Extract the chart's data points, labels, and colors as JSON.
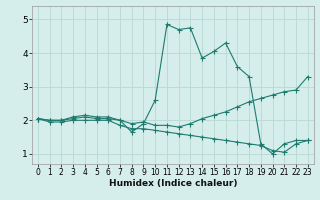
{
  "xlabel": "Humidex (Indice chaleur)",
  "bg_color": "#d5eeeb",
  "grid_color": "#b8d8d4",
  "line_color": "#1e7a6e",
  "xlim": [
    -0.5,
    23.5
  ],
  "ylim": [
    0.7,
    5.4
  ],
  "yticks": [
    1,
    2,
    3,
    4,
    5
  ],
  "xticks": [
    0,
    1,
    2,
    3,
    4,
    5,
    6,
    7,
    8,
    9,
    10,
    11,
    12,
    13,
    14,
    15,
    16,
    17,
    18,
    19,
    20,
    21,
    22,
    23
  ],
  "line1_x": [
    0,
    1,
    2,
    3,
    4,
    5,
    6,
    7,
    8,
    9,
    10,
    11,
    12,
    13,
    14,
    15,
    16,
    17,
    18,
    19,
    20,
    21,
    22,
    23
  ],
  "line1_y": [
    2.05,
    2.0,
    2.0,
    2.05,
    2.1,
    2.05,
    2.05,
    2.0,
    1.65,
    1.9,
    2.6,
    4.85,
    4.7,
    4.75,
    3.85,
    4.05,
    4.3,
    3.6,
    3.3,
    1.3,
    1.0,
    1.3,
    1.4,
    1.4
  ],
  "line2_x": [
    0,
    1,
    2,
    3,
    4,
    5,
    6,
    7,
    8,
    9,
    10,
    11,
    12,
    13,
    14,
    15,
    16,
    17,
    18,
    19,
    20,
    21,
    22,
    23
  ],
  "line2_y": [
    2.05,
    2.0,
    2.0,
    2.1,
    2.15,
    2.1,
    2.1,
    2.0,
    1.9,
    1.95,
    1.85,
    1.85,
    1.8,
    1.9,
    2.05,
    2.15,
    2.25,
    2.4,
    2.55,
    2.65,
    2.75,
    2.85,
    2.9,
    3.3
  ],
  "line3_x": [
    0,
    1,
    2,
    3,
    4,
    5,
    6,
    7,
    8,
    9,
    10,
    11,
    12,
    13,
    14,
    15,
    16,
    17,
    18,
    19,
    20,
    21,
    22,
    23
  ],
  "line3_y": [
    2.05,
    1.95,
    1.95,
    2.0,
    2.0,
    2.0,
    2.0,
    1.85,
    1.75,
    1.75,
    1.7,
    1.65,
    1.6,
    1.55,
    1.5,
    1.45,
    1.4,
    1.35,
    1.3,
    1.25,
    1.1,
    1.05,
    1.3,
    1.4
  ]
}
